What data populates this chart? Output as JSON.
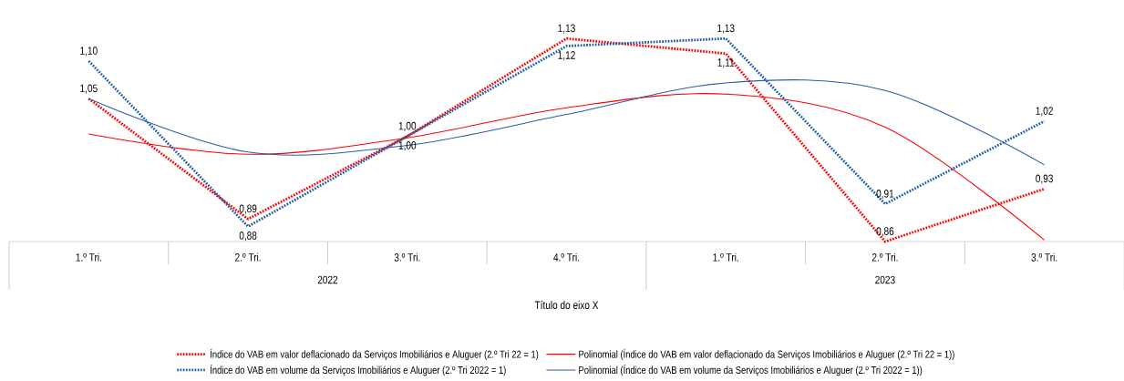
{
  "chart_data": {
    "type": "line",
    "xlabel": "Título do eixo X",
    "categories": [
      "1.º Tri.",
      "2.º Tri.",
      "3.º Tri.",
      "4.º Tri.",
      "1.º Tri.",
      "2.º Tri.",
      "3.º Tri."
    ],
    "annotations": [
      "2022",
      "2023"
    ],
    "legend": "bottom",
    "series": [
      {
        "name": "Índice do VAB em valor deflacionado da Serviços Imobiliários e Aluguer  (2.º Tri 22 = 1)",
        "color": "#ff0000",
        "line_style": "dotted",
        "values": [
          1.05,
          0.89,
          1.0,
          1.13,
          1.11,
          0.86,
          0.93
        ],
        "value_labels": [
          "1,05",
          "0,89",
          "1,00",
          "1,13",
          "1,11",
          "0,86",
          "0,93"
        ]
      },
      {
        "name": "Polinomial (Índice do VAB em valor deflacionado da Serviços Imobiliários e Aluguer  (2.º Tri 22 = 1))",
        "color": "#ff0000",
        "line_style": "solid",
        "values": [
          1.003,
          0.976,
          0.998,
          1.038,
          1.056,
          1.012,
          0.862
        ]
      },
      {
        "name": "Índice do VAB em volume da Serviços Imobiliários e Aluguer  (2.º Tri 2022 = 1)",
        "color": "#1f5ca8",
        "line_style": "dotted",
        "values": [
          1.1,
          0.88,
          1.0,
          1.12,
          1.13,
          0.91,
          1.02
        ],
        "value_labels": [
          "1,10",
          "0,88",
          "1,00",
          "1,12",
          "1,13",
          "0,91",
          "1,02"
        ]
      },
      {
        "name": "Polinomial (Índice do VAB em volume da Serviços Imobiliários e Aluguer  (2.º Tri 2022 = 1))",
        "color": "#2a5ea8",
        "line_style": "solid",
        "values": [
          1.05,
          0.979,
          0.988,
          1.029,
          1.071,
          1.061,
          0.962
        ]
      }
    ]
  }
}
